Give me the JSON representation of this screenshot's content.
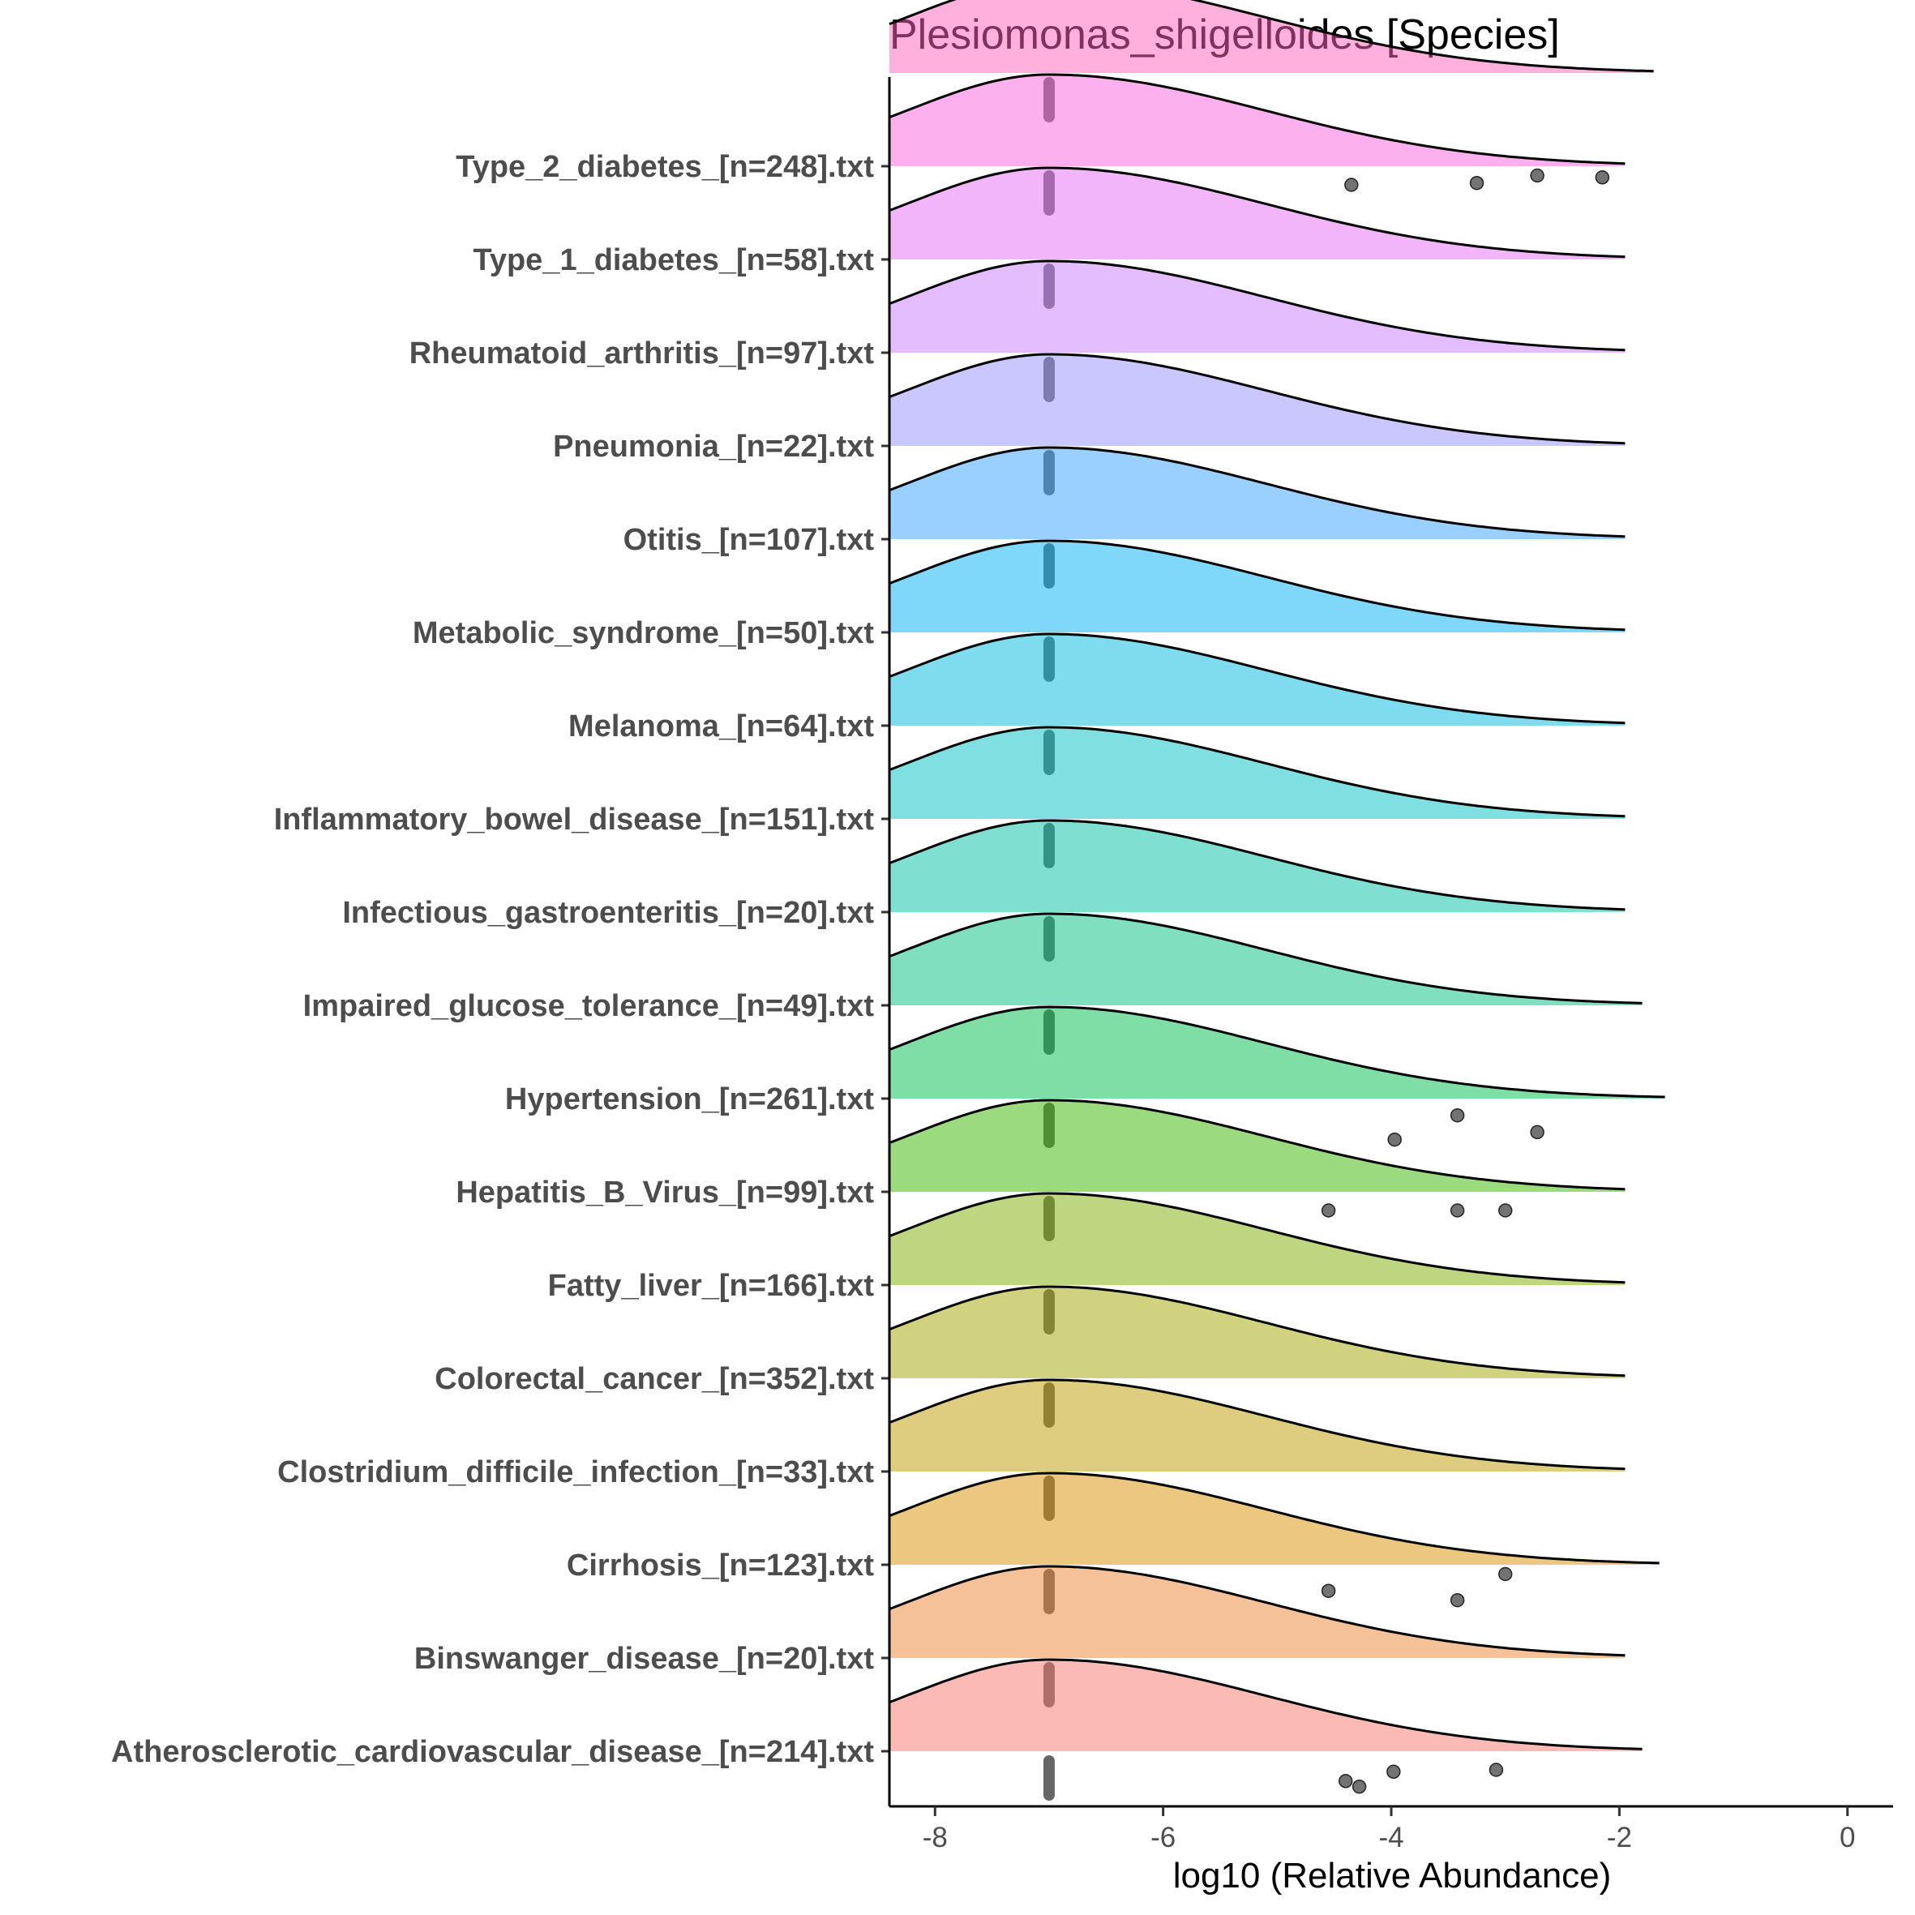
{
  "chart_data": {
    "type": "ridgeline",
    "title": "Plesiomonas_shigelloides [Species]",
    "xlabel": "log10 (Relative Abundance)",
    "ylabel": "",
    "xlim": [
      -8.4,
      0.4
    ],
    "xticks": [
      -8,
      -6,
      -4,
      -2,
      0
    ],
    "grid": false,
    "legend": "none",
    "mode": -7,
    "point_color": "#000000",
    "rows": [
      {
        "label": "Atherosclerotic_cardiovascular_disease_[n=214].txt",
        "color": "#F8766D",
        "x_end": -1.8,
        "outliers": [
          [
            -4.4,
            -0.32
          ],
          [
            -4.28,
            -0.38
          ],
          [
            -3.98,
            -0.22
          ],
          [
            -3.08,
            -0.2
          ]
        ]
      },
      {
        "label": "Binswanger_disease_[n=20].txt",
        "color": "#EA8331",
        "x_end": -1.95,
        "outliers": []
      },
      {
        "label": "Cirrhosis_[n=123].txt",
        "color": "#D89000",
        "x_end": -1.65,
        "outliers": [
          [
            -4.55,
            -0.28
          ],
          [
            -3.42,
            -0.38
          ],
          [
            -3.0,
            -0.1
          ]
        ]
      },
      {
        "label": "Clostridium_difficile_infection_[n=33].txt",
        "color": "#C09B00",
        "x_end": -1.95,
        "outliers": []
      },
      {
        "label": "Colorectal_cancer_[n=352].txt",
        "color": "#A3A500",
        "x_end": -1.95,
        "outliers": []
      },
      {
        "label": "Fatty_liver_[n=166].txt",
        "color": "#7CAE00",
        "x_end": -1.95,
        "outliers": []
      },
      {
        "label": "Hepatitis_B_Virus_[n=99].txt",
        "color": "#39B600",
        "x_end": -1.95,
        "outliers": [
          [
            -4.55,
            -0.2
          ],
          [
            -3.42,
            -0.2
          ],
          [
            -3.0,
            -0.2
          ]
        ]
      },
      {
        "label": "Hypertension_[n=261].txt",
        "color": "#00BB4E",
        "x_end": -1.6,
        "outliers": [
          [
            -3.97,
            -0.44
          ],
          [
            -3.42,
            -0.18
          ],
          [
            -2.72,
            -0.36
          ]
        ]
      },
      {
        "label": "Impaired_glucose_tolerance_[n=49].txt",
        "color": "#00BF7D",
        "x_end": -1.8,
        "outliers": []
      },
      {
        "label": "Infectious_gastroenteritis_[n=20].txt",
        "color": "#00C1A3",
        "x_end": -1.95,
        "outliers": []
      },
      {
        "label": "Inflammatory_bowel_disease_[n=151].txt",
        "color": "#00BFC4",
        "x_end": -1.95,
        "outliers": []
      },
      {
        "label": "Melanoma_[n=64].txt",
        "color": "#00BAE0",
        "x_end": -1.95,
        "outliers": []
      },
      {
        "label": "Metabolic_syndrome_[n=50].txt",
        "color": "#00B0F6",
        "x_end": -1.95,
        "outliers": []
      },
      {
        "label": "Otitis_[n=107].txt",
        "color": "#35A2FF",
        "x_end": -1.95,
        "outliers": []
      },
      {
        "label": "Pneumonia_[n=22].txt",
        "color": "#9590FF",
        "x_end": -1.95,
        "outliers": []
      },
      {
        "label": "Rheumatoid_arthritis_[n=97].txt",
        "color": "#C77CFF",
        "x_end": -1.95,
        "outliers": []
      },
      {
        "label": "Type_1_diabetes_[n=58].txt",
        "color": "#E76BF3",
        "x_end": -1.95,
        "outliers": []
      },
      {
        "label": "Type_2_diabetes_[n=248].txt",
        "color": "#FA62DB",
        "x_end": -1.95,
        "outliers": [
          [
            -4.35,
            -0.2
          ],
          [
            -3.25,
            -0.18
          ],
          [
            -2.72,
            -0.1
          ],
          [
            -2.15,
            -0.12
          ]
        ]
      },
      {
        "label": "",
        "color": "#FF62BC",
        "x_end": -1.7,
        "outliers": []
      }
    ]
  }
}
